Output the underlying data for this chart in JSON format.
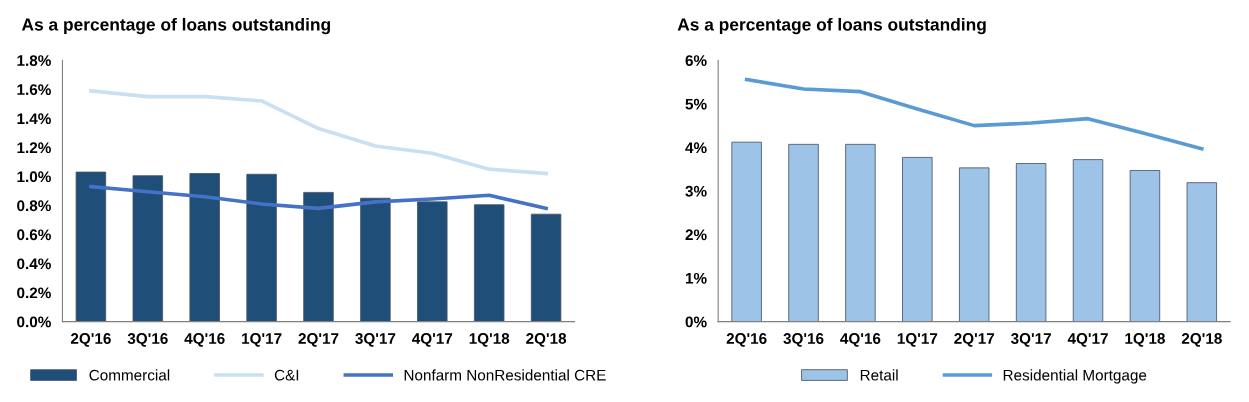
{
  "chart_data": [
    {
      "type": "bar",
      "title": "As a percentage of loans outstanding",
      "categories": [
        "2Q'16",
        "3Q'16",
        "4Q'16",
        "1Q'17",
        "2Q'17",
        "3Q'17",
        "4Q'17",
        "1Q'18",
        "2Q'18"
      ],
      "series": [
        {
          "name": "Commercial",
          "color": "#1f4e79",
          "values": [
            1.03,
            1.005,
            1.02,
            1.015,
            0.89,
            0.85,
            0.825,
            0.805,
            0.74
          ]
        },
        {
          "name": "C&I",
          "type": "line",
          "color": "#c9dff2",
          "values": [
            1.59,
            1.55,
            1.55,
            1.52,
            1.33,
            1.21,
            1.16,
            1.05,
            1.02
          ]
        },
        {
          "name": "Nonfarm NonResidential CRE",
          "type": "line",
          "color": "#4472c4",
          "values": [
            0.93,
            0.895,
            0.86,
            0.81,
            0.78,
            0.825,
            0.845,
            0.87,
            0.78
          ]
        }
      ],
      "ylim": [
        0,
        1.8
      ],
      "yticks": [
        {
          "value": 0,
          "label": "0.0%"
        },
        {
          "value": 0.2,
          "label": "0.2%"
        },
        {
          "value": 0.4,
          "label": "0.4%"
        },
        {
          "value": 0.6,
          "label": "0.6%"
        },
        {
          "value": 0.8,
          "label": "0.8%"
        },
        {
          "value": 1.0,
          "label": "1.0%"
        },
        {
          "value": 1.2,
          "label": "1.2%"
        },
        {
          "value": 1.4,
          "label": "1.4%"
        },
        {
          "value": 1.6,
          "label": "1.6%"
        },
        {
          "value": 1.8,
          "label": "1.8%"
        }
      ],
      "legend": "bottom"
    },
    {
      "type": "bar",
      "title": "As a percentage of loans outstanding",
      "categories": [
        "2Q'16",
        "3Q'16",
        "4Q'16",
        "1Q'17",
        "2Q'17",
        "3Q'17",
        "4Q'17",
        "1Q'18",
        "2Q'18"
      ],
      "series": [
        {
          "name": "Retail",
          "color": "#9dc3e6",
          "values": [
            4.12,
            4.07,
            4.07,
            3.77,
            3.53,
            3.63,
            3.72,
            3.47,
            3.19
          ]
        },
        {
          "name": "Residential Mortgage",
          "type": "line",
          "color": "#5b9bd5",
          "values": [
            5.56,
            5.34,
            5.28,
            4.88,
            4.5,
            4.56,
            4.66,
            4.32,
            3.97
          ]
        }
      ],
      "ylim": [
        0,
        6
      ],
      "yticks": [
        {
          "value": 0,
          "label": "0%"
        },
        {
          "value": 1,
          "label": "1%"
        },
        {
          "value": 2,
          "label": "2%"
        },
        {
          "value": 3,
          "label": "3%"
        },
        {
          "value": 4,
          "label": "4%"
        },
        {
          "value": 5,
          "label": "5%"
        },
        {
          "value": 6,
          "label": "6%"
        }
      ],
      "legend": "bottom"
    }
  ]
}
